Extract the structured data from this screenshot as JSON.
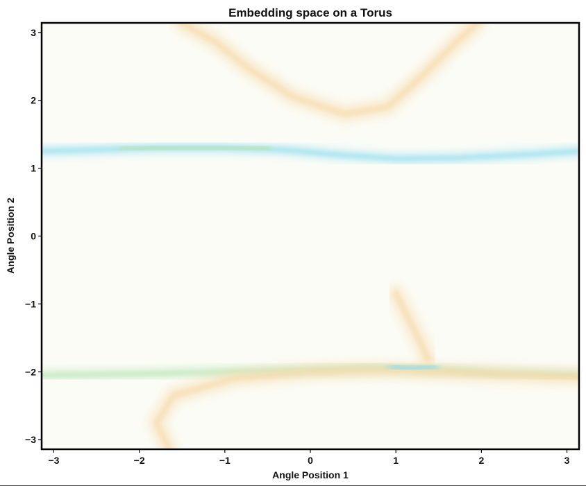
{
  "chart_data": {
    "type": "heatmap",
    "title": "Embedding space on a Torus",
    "xlabel": "Angle Position 1",
    "ylabel": "Angle Position 2",
    "xlim": [
      -3.14159,
      3.14159
    ],
    "ylim": [
      -3.14159,
      3.14159
    ],
    "xticks": [
      -3,
      -2,
      -1,
      0,
      1,
      2,
      3
    ],
    "yticks": [
      -3,
      -2,
      -1,
      0,
      1,
      2,
      3
    ],
    "xtick_labels": [
      "−3",
      "−2",
      "−1",
      "0",
      "1",
      "2",
      "3"
    ],
    "ytick_labels": [
      "−3",
      "−2",
      "−1",
      "0",
      "1",
      "2",
      "3"
    ],
    "grid": false,
    "legend": "none",
    "colors": {
      "background": "#fbfcf6",
      "cyan": "#8fdcf0",
      "green": "#b7e4b4",
      "orange": "#f6d9a8",
      "frame": "#000000"
    },
    "features": [
      {
        "kind": "band",
        "color": "cyan",
        "points": [
          [
            -3.14,
            1.25
          ],
          [
            -2.6,
            1.27
          ],
          [
            -1.8,
            1.3
          ],
          [
            -1.0,
            1.3
          ],
          [
            -0.3,
            1.27
          ],
          [
            0.3,
            1.2
          ],
          [
            1.0,
            1.14
          ],
          [
            1.7,
            1.15
          ],
          [
            2.5,
            1.2
          ],
          [
            3.14,
            1.25
          ]
        ]
      },
      {
        "kind": "band",
        "color": "green",
        "points": [
          [
            -2.2,
            1.28
          ],
          [
            -1.6,
            1.31
          ],
          [
            -1.0,
            1.31
          ],
          [
            -0.5,
            1.29
          ]
        ]
      },
      {
        "kind": "band",
        "color": "orange",
        "points": [
          [
            -1.5,
            3.14
          ],
          [
            -1.1,
            2.85
          ],
          [
            -0.7,
            2.45
          ],
          [
            -0.2,
            2.05
          ],
          [
            0.4,
            1.8
          ],
          [
            0.9,
            1.9
          ],
          [
            1.3,
            2.35
          ],
          [
            1.7,
            2.85
          ],
          [
            1.95,
            3.14
          ]
        ]
      },
      {
        "kind": "band",
        "color": "green",
        "points": [
          [
            -3.14,
            -2.05
          ],
          [
            -2.6,
            -2.04
          ],
          [
            -2.0,
            -2.03
          ],
          [
            -1.0,
            -2.0
          ],
          [
            0.0,
            -1.97
          ],
          [
            0.8,
            -1.93
          ],
          [
            1.3,
            -1.95
          ],
          [
            2.2,
            -2.02
          ],
          [
            3.14,
            -2.05
          ]
        ]
      },
      {
        "kind": "band",
        "color": "orange",
        "points": [
          [
            -1.65,
            -3.14
          ],
          [
            -1.8,
            -2.75
          ],
          [
            -1.6,
            -2.35
          ],
          [
            -0.9,
            -2.1
          ],
          [
            0.0,
            -2.0
          ],
          [
            0.9,
            -1.98
          ],
          [
            1.8,
            -2.02
          ],
          [
            3.14,
            -2.08
          ]
        ]
      },
      {
        "kind": "band",
        "color": "orange",
        "points": [
          [
            1.0,
            -0.85
          ],
          [
            1.12,
            -1.15
          ],
          [
            1.28,
            -1.55
          ],
          [
            1.38,
            -1.82
          ]
        ]
      },
      {
        "kind": "band",
        "color": "cyan",
        "points": [
          [
            0.95,
            -1.93
          ],
          [
            1.2,
            -1.95
          ],
          [
            1.45,
            -1.92
          ]
        ]
      }
    ]
  }
}
